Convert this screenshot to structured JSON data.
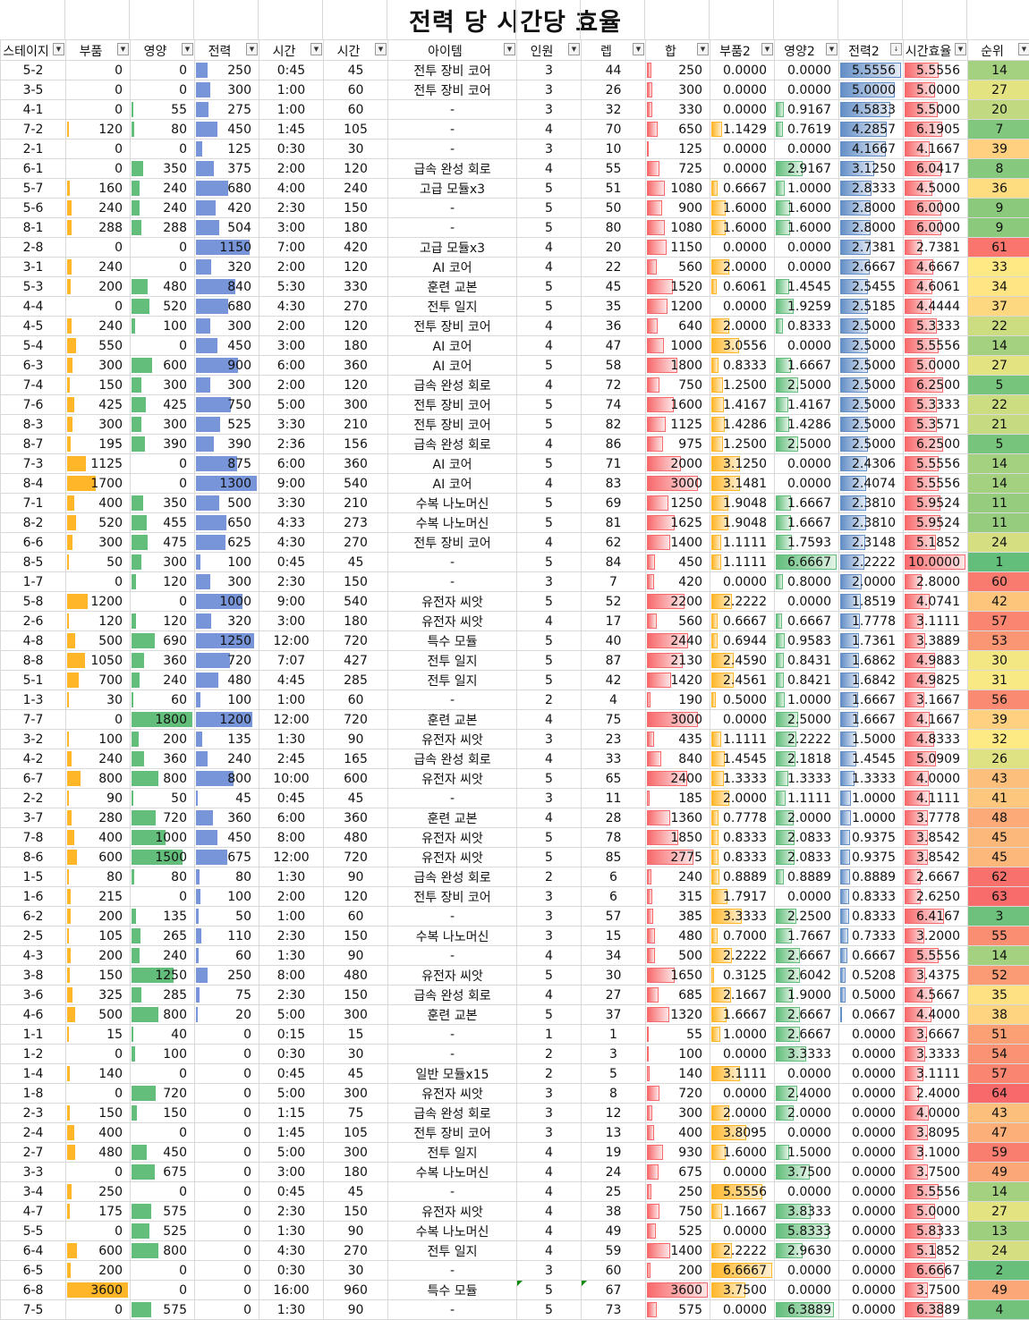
{
  "title": "전력 당 시간당 효율",
  "columns": [
    "스테이지",
    "부품",
    "영양",
    "전력",
    "시간",
    "시간",
    "아이템",
    "인원",
    "렙",
    "합",
    "부품2",
    "영양2",
    "전력2",
    "시간효율",
    "순위"
  ],
  "sort_icon": "sort-descending-icon",
  "filter_icon": "dropdown-arrow-icon",
  "colors": {
    "parts": "#ffb628",
    "nutrition": "#63be7b",
    "power": "#7795d8",
    "sum": "#f8696b",
    "parts2": "#ffb628",
    "nutrition2": "#63be7b",
    "power2": "#638ec6",
    "time_eff": "#f8696b",
    "rank_best": "#63be7b",
    "rank_mid": "#ffeb84",
    "rank_worst": "#f8696b"
  },
  "rows": [
    [
      "5-2",
      "0",
      "0",
      "250",
      "0:45",
      "45",
      "전투 장비 코어",
      "3",
      "44",
      "250",
      "0.0000",
      "0.0000",
      "5.5556",
      "5.5556",
      "14"
    ],
    [
      "3-5",
      "0",
      "0",
      "300",
      "1:00",
      "60",
      "전투 장비 코어",
      "3",
      "26",
      "300",
      "0.0000",
      "0.0000",
      "5.0000",
      "5.0000",
      "27"
    ],
    [
      "4-1",
      "0",
      "55",
      "275",
      "1:00",
      "60",
      "-",
      "3",
      "32",
      "330",
      "0.0000",
      "0.9167",
      "4.5833",
      "5.5000",
      "20"
    ],
    [
      "7-2",
      "120",
      "80",
      "450",
      "1:45",
      "105",
      "-",
      "4",
      "70",
      "650",
      "1.1429",
      "0.7619",
      "4.2857",
      "6.1905",
      "7"
    ],
    [
      "2-1",
      "0",
      "0",
      "125",
      "0:30",
      "30",
      "-",
      "3",
      "10",
      "125",
      "0.0000",
      "0.0000",
      "4.1667",
      "4.1667",
      "39"
    ],
    [
      "6-1",
      "0",
      "350",
      "375",
      "2:00",
      "120",
      "급속 완성 회로",
      "4",
      "55",
      "725",
      "0.0000",
      "2.9167",
      "3.1250",
      "6.0417",
      "8"
    ],
    [
      "5-7",
      "160",
      "240",
      "680",
      "4:00",
      "240",
      "고급 모듈x3",
      "5",
      "51",
      "1080",
      "0.6667",
      "1.0000",
      "2.8333",
      "4.5000",
      "36"
    ],
    [
      "5-6",
      "240",
      "240",
      "420",
      "2:30",
      "150",
      "-",
      "5",
      "50",
      "900",
      "1.6000",
      "1.6000",
      "2.8000",
      "6.0000",
      "9"
    ],
    [
      "8-1",
      "288",
      "288",
      "504",
      "3:00",
      "180",
      "-",
      "5",
      "80",
      "1080",
      "1.6000",
      "1.6000",
      "2.8000",
      "6.0000",
      "9"
    ],
    [
      "2-8",
      "0",
      "0",
      "1150",
      "7:00",
      "420",
      "고급 모듈x3",
      "4",
      "20",
      "1150",
      "0.0000",
      "0.0000",
      "2.7381",
      "2.7381",
      "61"
    ],
    [
      "3-1",
      "240",
      "0",
      "320",
      "2:00",
      "120",
      "AI 코어",
      "4",
      "22",
      "560",
      "2.0000",
      "0.0000",
      "2.6667",
      "4.6667",
      "33"
    ],
    [
      "5-3",
      "200",
      "480",
      "840",
      "5:30",
      "330",
      "훈련 교본",
      "5",
      "45",
      "1520",
      "0.6061",
      "1.4545",
      "2.5455",
      "4.6061",
      "34"
    ],
    [
      "4-4",
      "0",
      "520",
      "680",
      "4:30",
      "270",
      "전투 일지",
      "5",
      "35",
      "1200",
      "0.0000",
      "1.9259",
      "2.5185",
      "4.4444",
      "37"
    ],
    [
      "4-5",
      "240",
      "100",
      "300",
      "2:00",
      "120",
      "전투 장비 코어",
      "4",
      "36",
      "640",
      "2.0000",
      "0.8333",
      "2.5000",
      "5.3333",
      "22"
    ],
    [
      "5-4",
      "550",
      "0",
      "450",
      "3:00",
      "180",
      "AI 코어",
      "4",
      "47",
      "1000",
      "3.0556",
      "0.0000",
      "2.5000",
      "5.5556",
      "14"
    ],
    [
      "6-3",
      "300",
      "600",
      "900",
      "6:00",
      "360",
      "AI 코어",
      "5",
      "58",
      "1800",
      "0.8333",
      "1.6667",
      "2.5000",
      "5.0000",
      "27"
    ],
    [
      "7-4",
      "150",
      "300",
      "300",
      "2:00",
      "120",
      "급속 완성 회로",
      "4",
      "72",
      "750",
      "1.2500",
      "2.5000",
      "2.5000",
      "6.2500",
      "5"
    ],
    [
      "7-6",
      "425",
      "425",
      "750",
      "5:00",
      "300",
      "전투 장비 코어",
      "5",
      "74",
      "1600",
      "1.4167",
      "1.4167",
      "2.5000",
      "5.3333",
      "22"
    ],
    [
      "8-3",
      "300",
      "300",
      "525",
      "3:30",
      "210",
      "전투 장비 코어",
      "5",
      "82",
      "1125",
      "1.4286",
      "1.4286",
      "2.5000",
      "5.3571",
      "21"
    ],
    [
      "8-7",
      "195",
      "390",
      "390",
      "2:36",
      "156",
      "급속 완성 회로",
      "4",
      "86",
      "975",
      "1.2500",
      "2.5000",
      "2.5000",
      "6.2500",
      "5"
    ],
    [
      "7-3",
      "1125",
      "0",
      "875",
      "6:00",
      "360",
      "AI 코어",
      "5",
      "71",
      "2000",
      "3.1250",
      "0.0000",
      "2.4306",
      "5.5556",
      "14"
    ],
    [
      "8-4",
      "1700",
      "0",
      "1300",
      "9:00",
      "540",
      "AI 코어",
      "4",
      "83",
      "3000",
      "3.1481",
      "0.0000",
      "2.4074",
      "5.5556",
      "14"
    ],
    [
      "7-1",
      "400",
      "350",
      "500",
      "3:30",
      "210",
      "수복 나노머신",
      "5",
      "69",
      "1250",
      "1.9048",
      "1.6667",
      "2.3810",
      "5.9524",
      "11"
    ],
    [
      "8-2",
      "520",
      "455",
      "650",
      "4:33",
      "273",
      "수복 나노머신",
      "5",
      "81",
      "1625",
      "1.9048",
      "1.6667",
      "2.3810",
      "5.9524",
      "11"
    ],
    [
      "6-6",
      "300",
      "475",
      "625",
      "4:30",
      "270",
      "전투 장비 코어",
      "4",
      "62",
      "1400",
      "1.1111",
      "1.7593",
      "2.3148",
      "5.1852",
      "24"
    ],
    [
      "8-5",
      "50",
      "300",
      "100",
      "0:45",
      "45",
      "-",
      "5",
      "84",
      "450",
      "1.1111",
      "6.6667",
      "2.2222",
      "10.0000",
      "1"
    ],
    [
      "1-7",
      "0",
      "120",
      "300",
      "2:30",
      "150",
      "-",
      "3",
      "7",
      "420",
      "0.0000",
      "0.8000",
      "2.0000",
      "2.8000",
      "60"
    ],
    [
      "5-8",
      "1200",
      "0",
      "1000",
      "9:00",
      "540",
      "유전자 씨앗",
      "5",
      "52",
      "2200",
      "2.2222",
      "0.0000",
      "1.8519",
      "4.0741",
      "42"
    ],
    [
      "2-6",
      "120",
      "120",
      "320",
      "3:00",
      "180",
      "유전자 씨앗",
      "4",
      "17",
      "560",
      "0.6667",
      "0.6667",
      "1.7778",
      "3.1111",
      "57"
    ],
    [
      "4-8",
      "500",
      "690",
      "1250",
      "12:00",
      "720",
      "특수 모듈",
      "5",
      "40",
      "2440",
      "0.6944",
      "0.9583",
      "1.7361",
      "3.3889",
      "53"
    ],
    [
      "8-8",
      "1050",
      "360",
      "720",
      "7:07",
      "427",
      "전투 일지",
      "5",
      "87",
      "2130",
      "2.4590",
      "0.8431",
      "1.6862",
      "4.9883",
      "30"
    ],
    [
      "5-1",
      "700",
      "240",
      "480",
      "4:45",
      "285",
      "전투 일지",
      "5",
      "42",
      "1420",
      "2.4561",
      "0.8421",
      "1.6842",
      "4.9825",
      "31"
    ],
    [
      "1-3",
      "30",
      "60",
      "100",
      "1:00",
      "60",
      "-",
      "2",
      "4",
      "190",
      "0.5000",
      "1.0000",
      "1.6667",
      "3.1667",
      "56"
    ],
    [
      "7-7",
      "0",
      "1800",
      "1200",
      "12:00",
      "720",
      "훈련 교본",
      "4",
      "75",
      "3000",
      "0.0000",
      "2.5000",
      "1.6667",
      "4.1667",
      "39"
    ],
    [
      "3-2",
      "100",
      "200",
      "135",
      "1:30",
      "90",
      "유전자 씨앗",
      "3",
      "23",
      "435",
      "1.1111",
      "2.2222",
      "1.5000",
      "4.8333",
      "32"
    ],
    [
      "4-2",
      "240",
      "360",
      "240",
      "2:45",
      "165",
      "급속 완성 회로",
      "4",
      "33",
      "840",
      "1.4545",
      "2.1818",
      "1.4545",
      "5.0909",
      "26"
    ],
    [
      "6-7",
      "800",
      "800",
      "800",
      "10:00",
      "600",
      "유전자 씨앗",
      "5",
      "65",
      "2400",
      "1.3333",
      "1.3333",
      "1.3333",
      "4.0000",
      "43"
    ],
    [
      "2-2",
      "90",
      "50",
      "45",
      "0:45",
      "45",
      "-",
      "3",
      "11",
      "185",
      "2.0000",
      "1.1111",
      "1.0000",
      "4.1111",
      "41"
    ],
    [
      "3-7",
      "280",
      "720",
      "360",
      "6:00",
      "360",
      "훈련 교본",
      "4",
      "28",
      "1360",
      "0.7778",
      "2.0000",
      "1.0000",
      "3.7778",
      "48"
    ],
    [
      "7-8",
      "400",
      "1000",
      "450",
      "8:00",
      "480",
      "유전자 씨앗",
      "5",
      "78",
      "1850",
      "0.8333",
      "2.0833",
      "0.9375",
      "3.8542",
      "45"
    ],
    [
      "8-6",
      "600",
      "1500",
      "675",
      "12:00",
      "720",
      "유전자 씨앗",
      "5",
      "85",
      "2775",
      "0.8333",
      "2.0833",
      "0.9375",
      "3.8542",
      "45"
    ],
    [
      "1-5",
      "80",
      "80",
      "80",
      "1:30",
      "90",
      "급속 완성 회로",
      "2",
      "6",
      "240",
      "0.8889",
      "0.8889",
      "0.8889",
      "2.6667",
      "62"
    ],
    [
      "1-6",
      "215",
      "0",
      "100",
      "2:00",
      "120",
      "전투 장비 코어",
      "3",
      "6",
      "315",
      "1.7917",
      "0.0000",
      "0.8333",
      "2.6250",
      "63"
    ],
    [
      "6-2",
      "200",
      "135",
      "50",
      "1:00",
      "60",
      "-",
      "3",
      "57",
      "385",
      "3.3333",
      "2.2500",
      "0.8333",
      "6.4167",
      "3"
    ],
    [
      "2-5",
      "105",
      "265",
      "110",
      "2:30",
      "150",
      "수복 나노머신",
      "3",
      "15",
      "480",
      "0.7000",
      "1.7667",
      "0.7333",
      "3.2000",
      "55"
    ],
    [
      "4-3",
      "200",
      "240",
      "60",
      "1:30",
      "90",
      "-",
      "4",
      "34",
      "500",
      "2.2222",
      "2.6667",
      "0.6667",
      "5.5556",
      "14"
    ],
    [
      "3-8",
      "150",
      "1250",
      "250",
      "8:00",
      "480",
      "유전자 씨앗",
      "5",
      "30",
      "1650",
      "0.3125",
      "2.6042",
      "0.5208",
      "3.4375",
      "52"
    ],
    [
      "3-6",
      "325",
      "285",
      "75",
      "2:30",
      "150",
      "급속 완성 회로",
      "4",
      "27",
      "685",
      "2.1667",
      "1.9000",
      "0.5000",
      "4.5667",
      "35"
    ],
    [
      "4-6",
      "500",
      "800",
      "20",
      "5:00",
      "300",
      "훈련 교본",
      "5",
      "37",
      "1320",
      "1.6667",
      "2.6667",
      "0.0667",
      "4.4000",
      "38"
    ],
    [
      "1-1",
      "15",
      "40",
      "0",
      "0:15",
      "15",
      "-",
      "1",
      "1",
      "55",
      "1.0000",
      "2.6667",
      "0.0000",
      "3.6667",
      "51"
    ],
    [
      "1-2",
      "0",
      "100",
      "0",
      "0:30",
      "30",
      "-",
      "2",
      "3",
      "100",
      "0.0000",
      "3.3333",
      "0.0000",
      "3.3333",
      "54"
    ],
    [
      "1-4",
      "140",
      "0",
      "0",
      "0:45",
      "45",
      "일반 모듈x15",
      "2",
      "5",
      "140",
      "3.1111",
      "0.0000",
      "0.0000",
      "3.1111",
      "57"
    ],
    [
      "1-8",
      "0",
      "720",
      "0",
      "5:00",
      "300",
      "유전자 씨앗",
      "3",
      "8",
      "720",
      "0.0000",
      "2.4000",
      "0.0000",
      "2.4000",
      "64"
    ],
    [
      "2-3",
      "150",
      "150",
      "0",
      "1:15",
      "75",
      "급속 완성 회로",
      "3",
      "12",
      "300",
      "2.0000",
      "2.0000",
      "0.0000",
      "4.0000",
      "43"
    ],
    [
      "2-4",
      "400",
      "0",
      "0",
      "1:45",
      "105",
      "전투 장비 코어",
      "3",
      "13",
      "400",
      "3.8095",
      "0.0000",
      "0.0000",
      "3.8095",
      "47"
    ],
    [
      "2-7",
      "480",
      "450",
      "0",
      "5:00",
      "300",
      "전투 일지",
      "4",
      "19",
      "930",
      "1.6000",
      "1.5000",
      "0.0000",
      "3.1000",
      "59"
    ],
    [
      "3-3",
      "0",
      "675",
      "0",
      "3:00",
      "180",
      "수복 나노머신",
      "4",
      "24",
      "675",
      "0.0000",
      "3.7500",
      "0.0000",
      "3.7500",
      "49"
    ],
    [
      "3-4",
      "250",
      "0",
      "0",
      "0:45",
      "45",
      "-",
      "4",
      "25",
      "250",
      "5.5556",
      "0.0000",
      "0.0000",
      "5.5556",
      "14"
    ],
    [
      "4-7",
      "175",
      "575",
      "0",
      "2:30",
      "150",
      "유전자 씨앗",
      "4",
      "38",
      "750",
      "1.1667",
      "3.8333",
      "0.0000",
      "5.0000",
      "27"
    ],
    [
      "5-5",
      "0",
      "525",
      "0",
      "1:30",
      "90",
      "수복 나노머신",
      "4",
      "49",
      "525",
      "0.0000",
      "5.8333",
      "0.0000",
      "5.8333",
      "13"
    ],
    [
      "6-4",
      "600",
      "800",
      "0",
      "4:30",
      "270",
      "전투 일지",
      "4",
      "59",
      "1400",
      "2.2222",
      "2.9630",
      "0.0000",
      "5.1852",
      "24"
    ],
    [
      "6-5",
      "200",
      "0",
      "0",
      "0:30",
      "30",
      "-",
      "3",
      "60",
      "200",
      "6.6667",
      "0.0000",
      "0.0000",
      "6.6667",
      "2"
    ],
    [
      "6-8",
      "3600",
      "0",
      "0",
      "16:00",
      "960",
      "특수 모듈",
      "5",
      "67",
      "3600",
      "3.7500",
      "0.0000",
      "0.0000",
      "3.7500",
      "49"
    ],
    [
      "7-5",
      "0",
      "575",
      "0",
      "1:30",
      "90",
      "-",
      "5",
      "73",
      "575",
      "0.0000",
      "6.3889",
      "0.0000",
      "6.3889",
      "4"
    ]
  ]
}
